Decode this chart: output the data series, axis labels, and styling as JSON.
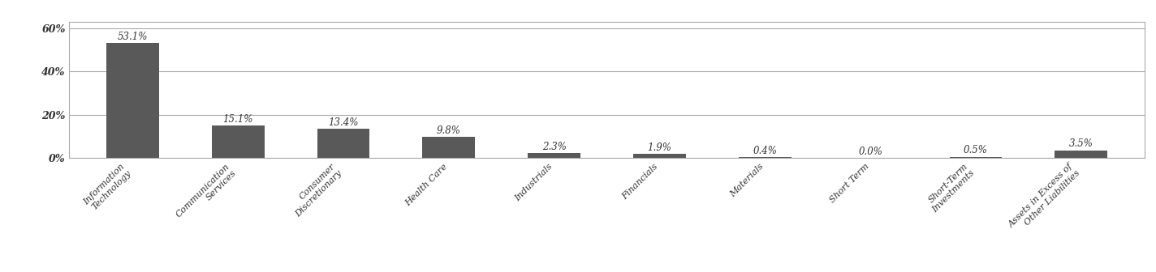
{
  "categories": [
    "Information\nTechnology",
    "Communication\nServices",
    "Consumer\nDiscretionary",
    "Health Care",
    "Industrials",
    "Financials",
    "Materials",
    "Short Term",
    "Short-Term\nInvestments",
    "Assets in Excess of\nOther Liabilities"
  ],
  "values": [
    53.1,
    15.1,
    13.4,
    9.8,
    2.3,
    1.9,
    0.4,
    0.0,
    0.5,
    3.5
  ],
  "bar_color": "#595959",
  "label_color": "#333333",
  "background_color": "#ffffff",
  "grid_color": "#aaaaaa",
  "ylim": [
    0,
    63
  ],
  "yticks": [
    0,
    20,
    40,
    60
  ],
  "ytick_labels": [
    "0%",
    "20%",
    "40%",
    "60%"
  ],
  "bar_label_fontsize": 8.5,
  "tick_label_fontsize": 9,
  "x_tick_fontsize": 8,
  "figsize": [
    14.24,
    3.36
  ],
  "dpi": 100
}
